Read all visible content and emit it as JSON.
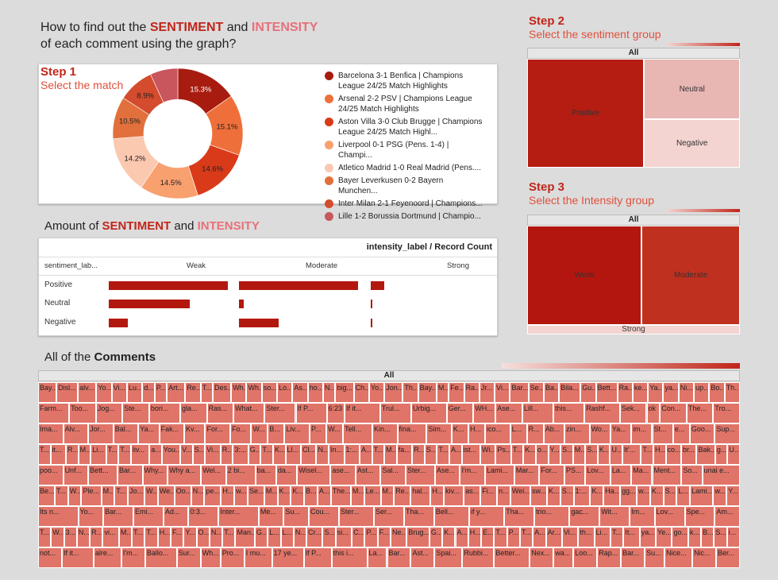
{
  "title": {
    "line1_prefix": "How to find out the ",
    "line1_sentiment": "SENTIMENT",
    "line1_and": " and ",
    "line1_intensity": "INTENSITY",
    "line2": "of each comment using the graph?"
  },
  "step1": {
    "title": "Step 1",
    "subtitle": "Select the match"
  },
  "step2": {
    "title": "Step 2",
    "subtitle": "Select the sentiment group"
  },
  "step3": {
    "title": "Step 3",
    "subtitle": "Select the Intensity group"
  },
  "amount_heading": {
    "prefix": "Amount of ",
    "sentiment": "SENTIMENT",
    "and": " and ",
    "intensity": "INTENSITY"
  },
  "comments_heading": {
    "prefix": "All of the ",
    "bold": "Comments"
  },
  "treemap_all_label": "All",
  "chart_data": [
    {
      "type": "pie",
      "subtype": "donut",
      "labels": [
        "Barcelona 3-1 Benfica | Champions League 24/25 Match Highlights",
        "Arsenal 2-2 PSV | Champions League 24/25 Match Highlights",
        "Aston Villa 3-0 Club Brugge | Champions League 24/25 Match Highl...",
        "Liverpool 0-1 PSG (Pens. 1-4) | Champi...",
        "Atletico Madrid 1-0 Real Madrid (Pens....",
        "Bayer Leverkusen 0-2 Bayern Munchen...",
        "Inter Milan 2-1 Feyenoord | Champions...",
        "Lille 1-2 Borussia Dortmund | Champio..."
      ],
      "values": [
        15.3,
        15.1,
        14.6,
        14.5,
        14.2,
        10.5,
        8.9,
        6.9
      ],
      "value_labels": [
        "15.3%",
        "15.1%",
        "14.6%",
        "14.5%",
        "14.2%",
        "10.5%",
        "8.9%",
        ""
      ],
      "colors": [
        "#a81c10",
        "#ef6f3a",
        "#d93a1a",
        "#f9a06f",
        "#fbc8b0",
        "#e2703c",
        "#d44b2d",
        "#c9565d"
      ],
      "legend_position": "right"
    },
    {
      "type": "treemap",
      "title": "Step 2",
      "root_label": "All",
      "labels": [
        "Positive",
        "Neutral",
        "Negative"
      ],
      "values": [
        55,
        25,
        20
      ],
      "colors": [
        "#b51c12",
        "#e8b7b3",
        "#f3d4d1"
      ]
    },
    {
      "type": "treemap",
      "title": "Step 3",
      "root_label": "All",
      "labels": [
        "Weak",
        "Moderate",
        "Strong"
      ],
      "values": [
        49,
        42,
        9
      ],
      "colors": [
        "#b3160e",
        "#c0301f",
        "#f3d4d1"
      ]
    },
    {
      "type": "bar",
      "orientation": "horizontal",
      "header": "intensity_label / Record Count",
      "row_header": "sentiment_lab...",
      "columns": [
        "Weak",
        "Moderate",
        "Strong"
      ],
      "rows": [
        "Positive",
        "Neutral",
        "Negative"
      ],
      "values": [
        [
          100,
          100,
          11
        ],
        [
          68,
          4,
          1
        ],
        [
          16,
          33,
          1
        ]
      ],
      "color": "#b3180f"
    }
  ],
  "comments_treemap": {
    "root_label": "All",
    "rows": [
      [
        "Bay...",
        "Disl...",
        "alv...",
        "Yo...",
        "Vi...",
        "Lu...",
        "d...",
        "P...",
        "Art...",
        "Re...",
        "T...",
        "Des...",
        "Wh...",
        "Wh...",
        "so...",
        "Lo...",
        "As...",
        "ho...",
        "N...",
        "big...",
        "Ch...",
        "Yo...",
        "Jon...",
        "Th...",
        "Bay...",
        "M...",
        "Fe...",
        "Ra...",
        "Jr...",
        "Vi...",
        "Bar...",
        "Se...",
        "Ba...",
        "Bila...",
        "Gu...",
        "Bett...",
        "Ra...",
        "ke...",
        "Ya...",
        "ya...",
        "Ni...",
        "up...",
        "Bo...",
        "Th..."
      ],
      [
        "Farm...",
        "Too...",
        "Jog...",
        "Ste...",
        "bori...",
        "gla...",
        "Ras...",
        "What...",
        "Ster...",
        "If P...",
        "6:23",
        "If it...",
        "Trul...",
        "Urbig...",
        "Ger...",
        "WH...",
        "Ase...",
        "Lill...",
        "this...",
        "Rashf...",
        "Sek...",
        "ok",
        "Con...",
        "The...",
        "Tro..."
      ],
      [
        "Ima...",
        "Alv...",
        "Jor...",
        "Bal...",
        "Ya...",
        "Fak...",
        "Kv...",
        "For...",
        "Fo...",
        "W...",
        "B...",
        "Liv...",
        "P...",
        "W...",
        "Tell...",
        "Kin...",
        "fina...",
        "Sim...",
        "K...",
        "H...",
        "ico...",
        "L...",
        "R...",
        "Ab...",
        "zin...",
        "Wo...",
        "Ya...",
        "im...",
        "St...",
        "e...",
        "Goo...",
        "Sup..."
      ],
      [
        "T...",
        "it...",
        "R...",
        "M...",
        "Li...",
        "T...",
        "T...",
        "liv...",
        "a...",
        "You...",
        "V...",
        "S...",
        "Vi...",
        "R...",
        "3:...",
        "G...",
        "T...",
        "K...",
        "Ll...",
        "Cl...",
        "N...",
        "In...",
        "1:...",
        "A...",
        "T...",
        "M...",
        "fa...",
        "R...",
        "S...",
        "T...",
        "A...",
        "ist...",
        "Wi...",
        "Ps...",
        "T...",
        "K...",
        "o...",
        "Y...",
        "S...",
        "M...",
        "S...",
        "K...",
        "U...",
        "It'...",
        "T...",
        "H...",
        "co...",
        "br...",
        "Bak...",
        "g...",
        "U..."
      ],
      [
        "poo...",
        "Unf...",
        "Bett...",
        "Bar...",
        "Why...",
        "Why a...",
        "Wel...",
        "2 bi...",
        "ba...",
        "da...",
        "Wisel...",
        "ase...",
        "Ast...",
        "Sal...",
        "Ster...",
        "Ase...",
        "I'm...",
        "Lami...",
        "Mar...",
        "For...",
        "PS...",
        "Lov...",
        "La...",
        "Ma...",
        "Ment...",
        "So...",
        "unai e..."
      ],
      [
        "Be...",
        "T...",
        "W...",
        "Ple...",
        "M...",
        "T...",
        "Jo...",
        "W...",
        "We...",
        "Oo...",
        "N...",
        "pe...",
        "H...",
        "w...",
        "Se...",
        "M...",
        "K...",
        "K...",
        "B...",
        "A...",
        "The...",
        "M...",
        "Le...",
        "M...",
        "Re...",
        "hal...",
        "H...",
        "kiv...",
        "as...",
        "Fi...",
        "n...",
        "Wei...",
        "sw...",
        "K...",
        "S...",
        "1:...",
        "K...",
        "Ha...",
        "gg...",
        "w...",
        "K...",
        "S...",
        "L...",
        "Lami...",
        "w...",
        "Y..."
      ],
      [
        "Its n...",
        "Yo...",
        "Bar...",
        "Emi...",
        "Ad...",
        "0:3...",
        "Inter...",
        "Me...",
        "Su...",
        "Cou...",
        "Ster...",
        "Ser...",
        "Tha...",
        "Bell...",
        "if y...",
        "Tha...",
        "trio...",
        "gac...",
        "Wit...",
        "Im...",
        "Lov...",
        "Spe...",
        "Am..."
      ],
      [
        "T...",
        "W...",
        "3...",
        "N...",
        "R...",
        "vi...",
        "M...",
        "T...",
        "T...",
        "H...",
        "F...",
        "Y...",
        "O...",
        "N...",
        "T...",
        "Man...",
        "G...",
        "L...",
        "L...",
        "N...",
        "Cr...",
        "S...",
        "si...",
        "C...",
        "P...",
        "F...",
        "Ne...",
        "Brug...",
        "G...",
        "K...",
        "A...",
        "H...",
        "E...",
        "T...",
        "P...",
        "T...",
        "A...",
        "Ar...",
        "Vi...",
        "th...",
        "Li...",
        "T...",
        "It...",
        "ya...",
        "Ye...",
        "go...",
        "k...",
        "B...",
        "S...",
        "i..."
      ],
      [
        "not...",
        "If it...",
        "alre...",
        "I'm...",
        "Ballo...",
        "Sur...",
        "Wh...",
        "Pro...",
        "I mu...",
        "17 ye...",
        "If P...",
        "this i...",
        "La...",
        "Bar...",
        "Ast...",
        "Spai...",
        "Rubbi...",
        "Better...",
        "Nex...",
        "wa...",
        "Loo...",
        "Rap...",
        "Bar...",
        "Su...",
        "Nice...",
        "Nic...",
        "Ber..."
      ]
    ]
  }
}
